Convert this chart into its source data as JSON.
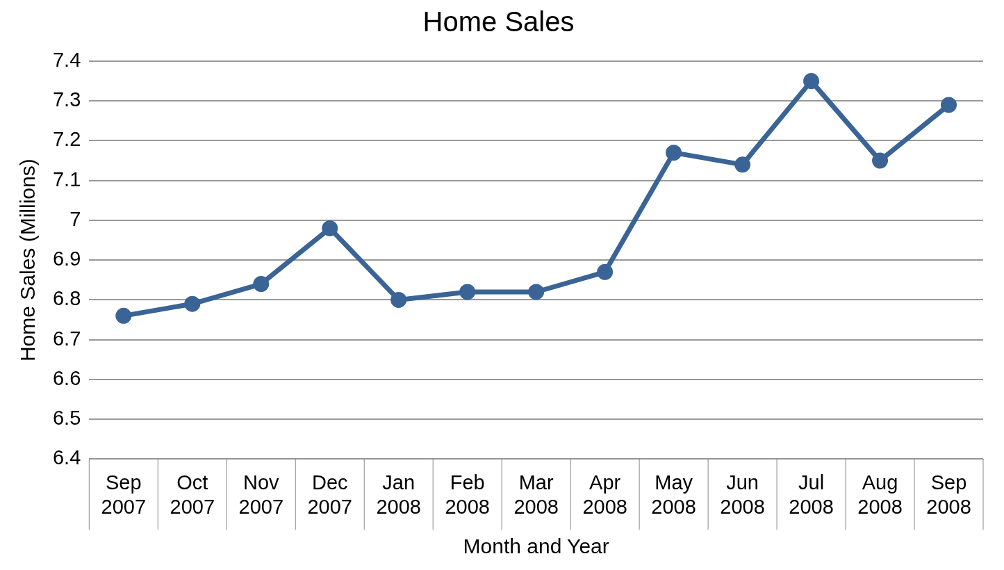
{
  "chart_data": {
    "type": "line",
    "title": "Home Sales",
    "xlabel": "Month and Year",
    "ylabel": "Home Sales (Millions)",
    "categories": [
      "Sep 2007",
      "Oct 2007",
      "Nov 2007",
      "Dec 2007",
      "Jan 2008",
      "Feb 2008",
      "Mar 2008",
      "Apr 2008",
      "May 2008",
      "Jun 2008",
      "Jul 2008",
      "Aug 2008",
      "Sep 2008"
    ],
    "series": [
      {
        "color": "#3a6496",
        "values": [
          6.76,
          6.79,
          6.84,
          6.98,
          6.8,
          6.82,
          6.82,
          6.87,
          7.17,
          7.14,
          7.35,
          7.15,
          7.29
        ]
      }
    ],
    "ylim": [
      6.4,
      7.4
    ],
    "yticks": [
      6.4,
      6.5,
      6.6,
      6.7,
      6.8,
      6.9,
      7,
      7.1,
      7.2,
      7.3,
      7.4
    ],
    "grid": "y",
    "legend": false,
    "marker": "circle",
    "line_style": "solid"
  }
}
